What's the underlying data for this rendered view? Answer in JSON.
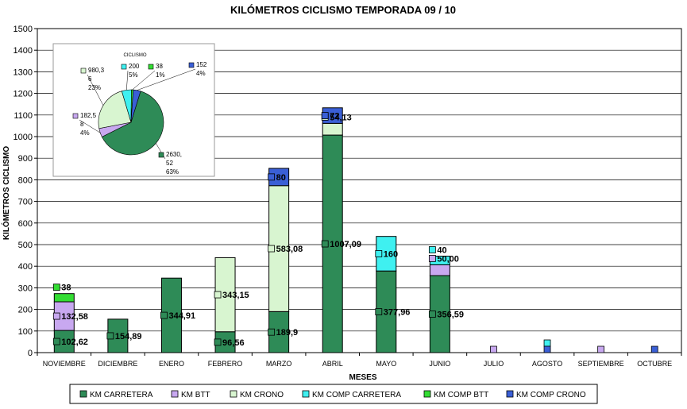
{
  "chart_data": {
    "type": "bar",
    "stacked": true,
    "title": "KILÓMETROS CICLISMO TEMPORADA 09 / 10",
    "xlabel": "MESES",
    "ylabel": "KILÓMETROS CICLISMO",
    "ylim": [
      0,
      1500
    ],
    "yticks": [
      0,
      100,
      200,
      300,
      400,
      500,
      600,
      700,
      800,
      900,
      1000,
      1100,
      1200,
      1300,
      1400,
      1500
    ],
    "grid": true,
    "legend_position": "bottom",
    "categories": [
      "NOVIEMBRE",
      "DICIEMBRE",
      "ENERO",
      "FEBRERO",
      "MARZO",
      "ABRIL",
      "MAYO",
      "JUNIO",
      "JULIO",
      "AGOSTO",
      "SEPTIEMBRE",
      "OCTUBRE"
    ],
    "series": [
      {
        "name": "KM CARRETERA",
        "color": "#2e8b57",
        "values": [
          102.62,
          154.89,
          344.91,
          96.56,
          189.9,
          1007.09,
          377.96,
          356.59,
          0,
          0,
          0,
          0
        ]
      },
      {
        "name": "KM BTT",
        "color": "#c8a8f0",
        "values": [
          132.58,
          0,
          0,
          0,
          0,
          0,
          0,
          50.0,
          0,
          0,
          0,
          0
        ]
      },
      {
        "name": "KM CRONO",
        "color": "#d8f5d0",
        "values": [
          0,
          0,
          0,
          343.15,
          583.08,
          54.13,
          0,
          0,
          0,
          0,
          0,
          0
        ]
      },
      {
        "name": "KM COMP CARRETERA",
        "color": "#3ff0f0",
        "values": [
          0,
          0,
          0,
          0,
          0,
          0,
          160,
          40,
          0,
          0,
          0,
          0
        ]
      },
      {
        "name": "KM COMP BTT",
        "color": "#33dd33",
        "values": [
          38,
          0,
          0,
          0,
          0,
          0,
          0,
          0,
          0,
          0,
          0,
          0
        ]
      },
      {
        "name": "KM COMP CRONO",
        "color": "#3a5fd6",
        "values": [
          0,
          0,
          0,
          0,
          80,
          72,
          0,
          0,
          0,
          0,
          0,
          0
        ]
      }
    ],
    "data_labels": [
      {
        "cat": 0,
        "series": 0,
        "text": "102,62"
      },
      {
        "cat": 0,
        "series": 1,
        "text": "132,58"
      },
      {
        "cat": 0,
        "series": 4,
        "text": "38"
      },
      {
        "cat": 1,
        "series": 0,
        "text": "154,89"
      },
      {
        "cat": 2,
        "series": 0,
        "text": "344,91"
      },
      {
        "cat": 3,
        "series": 0,
        "text": "96,56"
      },
      {
        "cat": 3,
        "series": 2,
        "text": "343,15"
      },
      {
        "cat": 4,
        "series": 0,
        "text": "189,9"
      },
      {
        "cat": 4,
        "series": 2,
        "text": "583,08"
      },
      {
        "cat": 4,
        "series": 5,
        "text": "80"
      },
      {
        "cat": 5,
        "series": 0,
        "text": "1007,09"
      },
      {
        "cat": 5,
        "series": 2,
        "text": "54,13"
      },
      {
        "cat": 5,
        "series": 5,
        "text": "72"
      },
      {
        "cat": 6,
        "series": 0,
        "text": "377,96"
      },
      {
        "cat": 6,
        "series": 3,
        "text": "160"
      },
      {
        "cat": 7,
        "series": 0,
        "text": "356,59"
      },
      {
        "cat": 7,
        "series": 1,
        "text": "50,00"
      },
      {
        "cat": 7,
        "series": 3,
        "text": "40"
      }
    ],
    "zero_markers": [
      {
        "cat": 8,
        "series": 1
      },
      {
        "cat": 9,
        "series": 3
      },
      {
        "cat": 9,
        "series": 5
      },
      {
        "cat": 10,
        "series": 1
      },
      {
        "cat": 11,
        "series": 5
      }
    ],
    "inset_pie": {
      "type": "pie",
      "title": "CICLISMO",
      "slices": [
        {
          "series": 0,
          "value": 2630.52,
          "percent": "63%",
          "label_lines": [
            "2630,",
            "52",
            "63%"
          ]
        },
        {
          "series": 1,
          "value": 182.58,
          "percent": "4%",
          "label_lines": [
            "182,5",
            "8",
            "4%"
          ]
        },
        {
          "series": 2,
          "value": 980.36,
          "percent": "23%",
          "label_lines": [
            "980,3",
            "6",
            "23%"
          ]
        },
        {
          "series": 3,
          "value": 200,
          "percent": "5%",
          "label_lines": [
            "200",
            "5%"
          ]
        },
        {
          "series": 4,
          "value": 38,
          "percent": "1%",
          "label_lines": [
            "38",
            "1%"
          ]
        },
        {
          "series": 5,
          "value": 152,
          "percent": "4%",
          "label_lines": [
            "152",
            "4%"
          ]
        }
      ]
    }
  }
}
